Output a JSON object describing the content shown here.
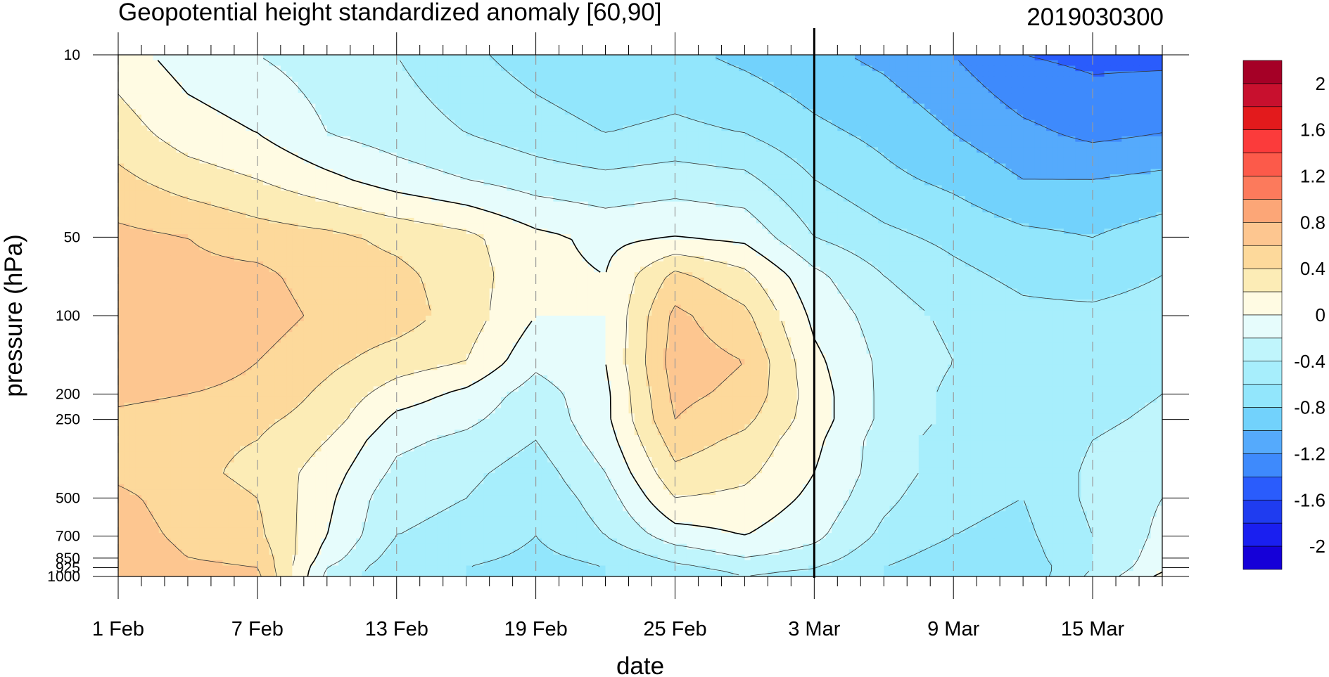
{
  "chart_data": {
    "type": "heatmap",
    "title": "Geopotential height standardized anomaly [60,90]",
    "date_stamp": "2019030300",
    "xlabel": "date",
    "ylabel": "pressure (hPa)",
    "x_ticks": [
      {
        "day": 0,
        "label": "1 Feb"
      },
      {
        "day": 6,
        "label": "7 Feb"
      },
      {
        "day": 12,
        "label": "13 Feb"
      },
      {
        "day": 18,
        "label": "19 Feb"
      },
      {
        "day": 24,
        "label": "25 Feb"
      },
      {
        "day": 30,
        "label": "3 Mar"
      },
      {
        "day": 36,
        "label": "9 Mar"
      },
      {
        "day": 42,
        "label": "15 Mar"
      }
    ],
    "x_range_days": [
      0,
      45
    ],
    "marker_day": 30,
    "y_scale": "log",
    "y_range": [
      1000,
      10
    ],
    "y_ticks": [
      {
        "value": 10,
        "label": "10"
      },
      {
        "value": 50,
        "label": "50"
      },
      {
        "value": 100,
        "label": "100"
      },
      {
        "value": 200,
        "label": "200"
      },
      {
        "value": 250,
        "label": "250"
      },
      {
        "value": 500,
        "label": "500"
      },
      {
        "value": 700,
        "label": "700"
      },
      {
        "value": 850,
        "label": "850"
      },
      {
        "value": 925,
        "label": "925"
      },
      {
        "value": 1000,
        "label": "1000"
      }
    ],
    "days": [
      0,
      3,
      6,
      9,
      12,
      15,
      18,
      21,
      24,
      27,
      30,
      33,
      36,
      39,
      42,
      45
    ],
    "levels": [
      10,
      20,
      30,
      50,
      70,
      100,
      150,
      200,
      250,
      300,
      400,
      500,
      700,
      850,
      925,
      1000
    ],
    "values": [
      [
        0.1,
        -0.1,
        -0.2,
        -0.3,
        -0.4,
        -0.55,
        -0.7,
        -0.8,
        -0.75,
        -0.85,
        -0.95,
        -1.05,
        -1.2,
        -1.4,
        -1.45,
        -1.45
      ],
      [
        0.3,
        0.1,
        0.0,
        -0.2,
        -0.3,
        -0.4,
        -0.5,
        -0.6,
        -0.55,
        -0.6,
        -0.75,
        -0.85,
        -1.0,
        -1.15,
        -1.25,
        -1.2
      ],
      [
        0.45,
        0.3,
        0.2,
        0.05,
        -0.1,
        -0.2,
        -0.3,
        -0.35,
        -0.3,
        -0.35,
        -0.6,
        -0.75,
        -0.85,
        -1.0,
        -1.0,
        -0.95
      ],
      [
        0.65,
        0.6,
        0.5,
        0.45,
        0.35,
        0.25,
        0.05,
        -0.05,
        0.0,
        -0.05,
        -0.4,
        -0.55,
        -0.65,
        -0.75,
        -0.8,
        -0.7
      ],
      [
        0.7,
        0.65,
        0.65,
        0.5,
        0.45,
        0.3,
        0.05,
        0.0,
        0.45,
        0.25,
        -0.15,
        -0.4,
        -0.55,
        -0.65,
        -0.7,
        -0.6
      ],
      [
        0.75,
        0.7,
        0.7,
        0.55,
        0.5,
        0.3,
        0.0,
        0.0,
        0.65,
        0.45,
        -0.05,
        -0.3,
        -0.45,
        -0.55,
        -0.55,
        -0.5
      ],
      [
        0.7,
        0.7,
        0.6,
        0.45,
        0.3,
        0.2,
        -0.15,
        0.0,
        0.7,
        0.6,
        0.05,
        -0.25,
        -0.4,
        -0.55,
        -0.5,
        -0.45
      ],
      [
        0.65,
        0.6,
        0.55,
        0.35,
        0.1,
        -0.05,
        -0.3,
        -0.05,
        0.65,
        0.55,
        0.1,
        -0.25,
        -0.45,
        -0.6,
        -0.5,
        -0.4
      ],
      [
        0.55,
        0.5,
        0.45,
        0.3,
        -0.05,
        -0.15,
        -0.35,
        -0.05,
        0.6,
        0.45,
        0.1,
        -0.25,
        -0.45,
        -0.6,
        -0.45,
        -0.35
      ],
      [
        0.5,
        0.45,
        0.4,
        0.2,
        -0.15,
        -0.25,
        -0.4,
        -0.1,
        0.5,
        0.35,
        0.05,
        -0.3,
        -0.5,
        -0.6,
        -0.4,
        -0.3
      ],
      [
        0.55,
        0.45,
        0.35,
        0.1,
        -0.25,
        -0.35,
        -0.5,
        -0.2,
        0.35,
        0.25,
        0.0,
        -0.3,
        -0.5,
        -0.6,
        -0.35,
        -0.25
      ],
      [
        0.65,
        0.5,
        0.4,
        0.05,
        -0.35,
        -0.4,
        -0.55,
        -0.3,
        0.2,
        0.15,
        -0.05,
        -0.35,
        -0.55,
        -0.6,
        -0.35,
        -0.2
      ],
      [
        0.7,
        0.55,
        0.45,
        0.0,
        -0.4,
        -0.45,
        -0.6,
        -0.4,
        -0.1,
        0.0,
        -0.15,
        -0.45,
        -0.6,
        -0.65,
        -0.4,
        -0.15
      ],
      [
        0.75,
        0.6,
        0.55,
        -0.1,
        -0.5,
        -0.55,
        -0.65,
        -0.55,
        -0.35,
        -0.2,
        -0.3,
        -0.55,
        -0.7,
        -0.7,
        -0.4,
        -0.1
      ],
      [
        0.75,
        0.65,
        0.6,
        -0.2,
        -0.55,
        -0.6,
        -0.7,
        -0.6,
        -0.45,
        -0.35,
        -0.4,
        -0.6,
        -0.75,
        -0.75,
        -0.4,
        -0.05
      ],
      [
        0.8,
        0.7,
        0.65,
        -0.25,
        -0.55,
        -0.6,
        -0.75,
        -0.6,
        -0.5,
        -0.4,
        -0.45,
        -0.6,
        -0.8,
        -0.75,
        -0.35,
        0.05
      ]
    ],
    "colorbar": {
      "labels": [
        "2",
        "1.6",
        "1.2",
        "0.8",
        "0.4",
        "0",
        "-0.4",
        "-0.8",
        "-1.2",
        "-1.6",
        "-2"
      ],
      "boundaries": [
        2.2,
        2.0,
        1.8,
        1.6,
        1.4,
        1.2,
        1.0,
        0.8,
        0.6,
        0.4,
        0.2,
        0.0,
        -0.2,
        -0.4,
        -0.6,
        -0.8,
        -1.0,
        -1.2,
        -1.4,
        -1.6,
        -1.8,
        -2.0,
        -2.2
      ],
      "colors": [
        "#a50026",
        "#c8102e",
        "#e31a1c",
        "#fb3b3b",
        "#fc5a4a",
        "#fc7a5c",
        "#fca677",
        "#fdc690",
        "#fdd99b",
        "#fcecb6",
        "#fffbe3",
        "#e6fcfc",
        "#c0f5fc",
        "#a7eefc",
        "#92e6fc",
        "#72d2fc",
        "#55aafc",
        "#3e8afc",
        "#2a5cfc",
        "#1f3cf0",
        "#1a1ff0",
        "#1500d8"
      ]
    }
  }
}
